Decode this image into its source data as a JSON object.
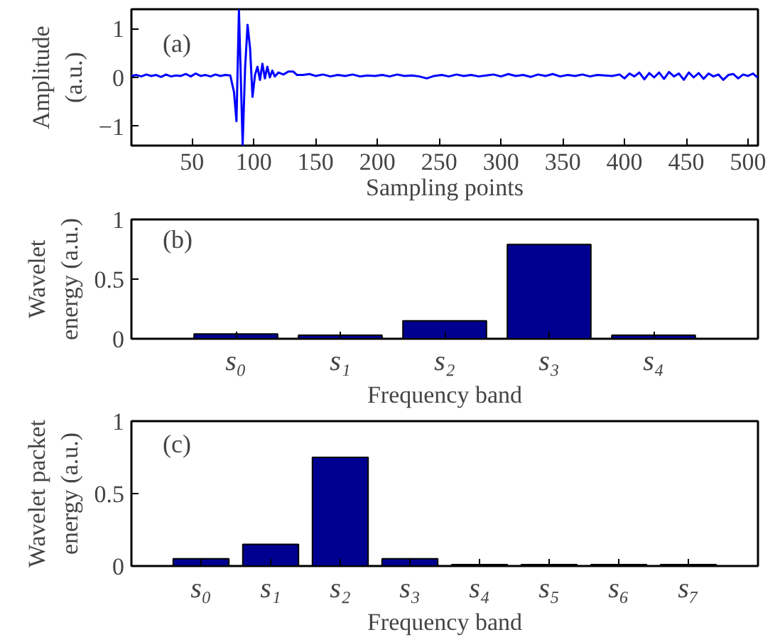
{
  "chart_data": [
    {
      "type": "line",
      "xlabel": "Sampling points",
      "ylabel": "Amplitude\n(a.u.)",
      "annotations": [
        "(a)"
      ],
      "xlim": [
        1,
        508
      ],
      "ylim": [
        -1.4,
        1.4
      ],
      "xticks": [
        50,
        100,
        150,
        200,
        250,
        300,
        350,
        400,
        450,
        500
      ],
      "yticks": [
        -1,
        0,
        1
      ],
      "series": [
        {
          "color": "#0000ff",
          "x": [
            1,
            5,
            9,
            13,
            17,
            21,
            25,
            29,
            33,
            37,
            41,
            45,
            49,
            53,
            57,
            61,
            65,
            69,
            73,
            77,
            81,
            84,
            86,
            88,
            91,
            93,
            95,
            97,
            99,
            101,
            103,
            105,
            107,
            109,
            111,
            113,
            115,
            117,
            120,
            124,
            128,
            132,
            135,
            140,
            145,
            150,
            156,
            162,
            168,
            174,
            180,
            186,
            192,
            198,
            204,
            210,
            216,
            222,
            228,
            234,
            240,
            246,
            252,
            258,
            264,
            270,
            276,
            282,
            288,
            294,
            300,
            306,
            312,
            318,
            324,
            330,
            336,
            342,
            348,
            354,
            360,
            366,
            372,
            378,
            384,
            390,
            396,
            400,
            404,
            408,
            412,
            416,
            420,
            424,
            428,
            432,
            436,
            440,
            444,
            448,
            452,
            456,
            460,
            464,
            468,
            472,
            476,
            480,
            484,
            488,
            492,
            496,
            500,
            504,
            508
          ],
          "values": [
            0.03,
            0.05,
            0.02,
            0.06,
            0.03,
            0.05,
            0.01,
            0.06,
            0.02,
            0.04,
            0.03,
            0.07,
            0.02,
            0.08,
            0.03,
            0.05,
            0.02,
            0.06,
            0.03,
            0.05,
            0.04,
            -0.3,
            -0.9,
            1.38,
            -1.38,
            0.2,
            1.08,
            0.6,
            -0.4,
            0.05,
            0.22,
            -0.05,
            0.28,
            -0.02,
            0.22,
            0.0,
            0.14,
            0.02,
            0.1,
            0.06,
            0.12,
            0.12,
            0.05,
            0.05,
            0.07,
            0.03,
            0.06,
            0.02,
            0.05,
            0.03,
            0.06,
            0.02,
            0.04,
            0.03,
            0.05,
            0.02,
            0.06,
            0.03,
            0.04,
            0.02,
            -0.02,
            0.03,
            0.05,
            0.02,
            0.06,
            0.03,
            0.05,
            0.02,
            0.04,
            0.06,
            0.02,
            0.07,
            0.03,
            0.05,
            0.01,
            0.06,
            0.03,
            0.07,
            0.02,
            0.05,
            0.03,
            0.06,
            0.02,
            0.05,
            0.04,
            0.03,
            0.06,
            -0.02,
            0.08,
            0.02,
            0.1,
            -0.04,
            0.09,
            0.0,
            0.1,
            -0.03,
            0.11,
            0.02,
            0.08,
            -0.05,
            0.1,
            0.0,
            0.09,
            -0.03,
            0.08,
            0.02,
            0.06,
            -0.05,
            0.05,
            0.07,
            -0.02,
            0.06,
            0.03,
            0.08,
            -0.01
          ]
        }
      ]
    },
    {
      "type": "bar",
      "xlabel": "Frequency band",
      "ylabel": "Wavelet\nenergy (a.u.)",
      "annotations": [
        "(b)"
      ],
      "categories": [
        "s₀",
        "s₁",
        "s₂",
        "s₃",
        "s₄"
      ],
      "values": [
        0.04,
        0.03,
        0.15,
        0.79,
        0.03
      ],
      "color": "#000090",
      "ylim": [
        0,
        1
      ],
      "yticks": [
        0,
        0.5,
        1
      ]
    },
    {
      "type": "bar",
      "xlabel": "Frequency band",
      "ylabel": "Wavelet packet\nenergy (a.u.)",
      "annotations": [
        "(c)"
      ],
      "categories": [
        "s₀",
        "s₁",
        "s₂",
        "s₃",
        "s₄",
        "s₅",
        "s₆",
        "s₇"
      ],
      "values": [
        0.05,
        0.15,
        0.75,
        0.05,
        0.01,
        0.01,
        0.01,
        0.01
      ],
      "color": "#000090",
      "ylim": [
        0,
        1
      ],
      "yticks": [
        0,
        0.5,
        1
      ]
    }
  ]
}
